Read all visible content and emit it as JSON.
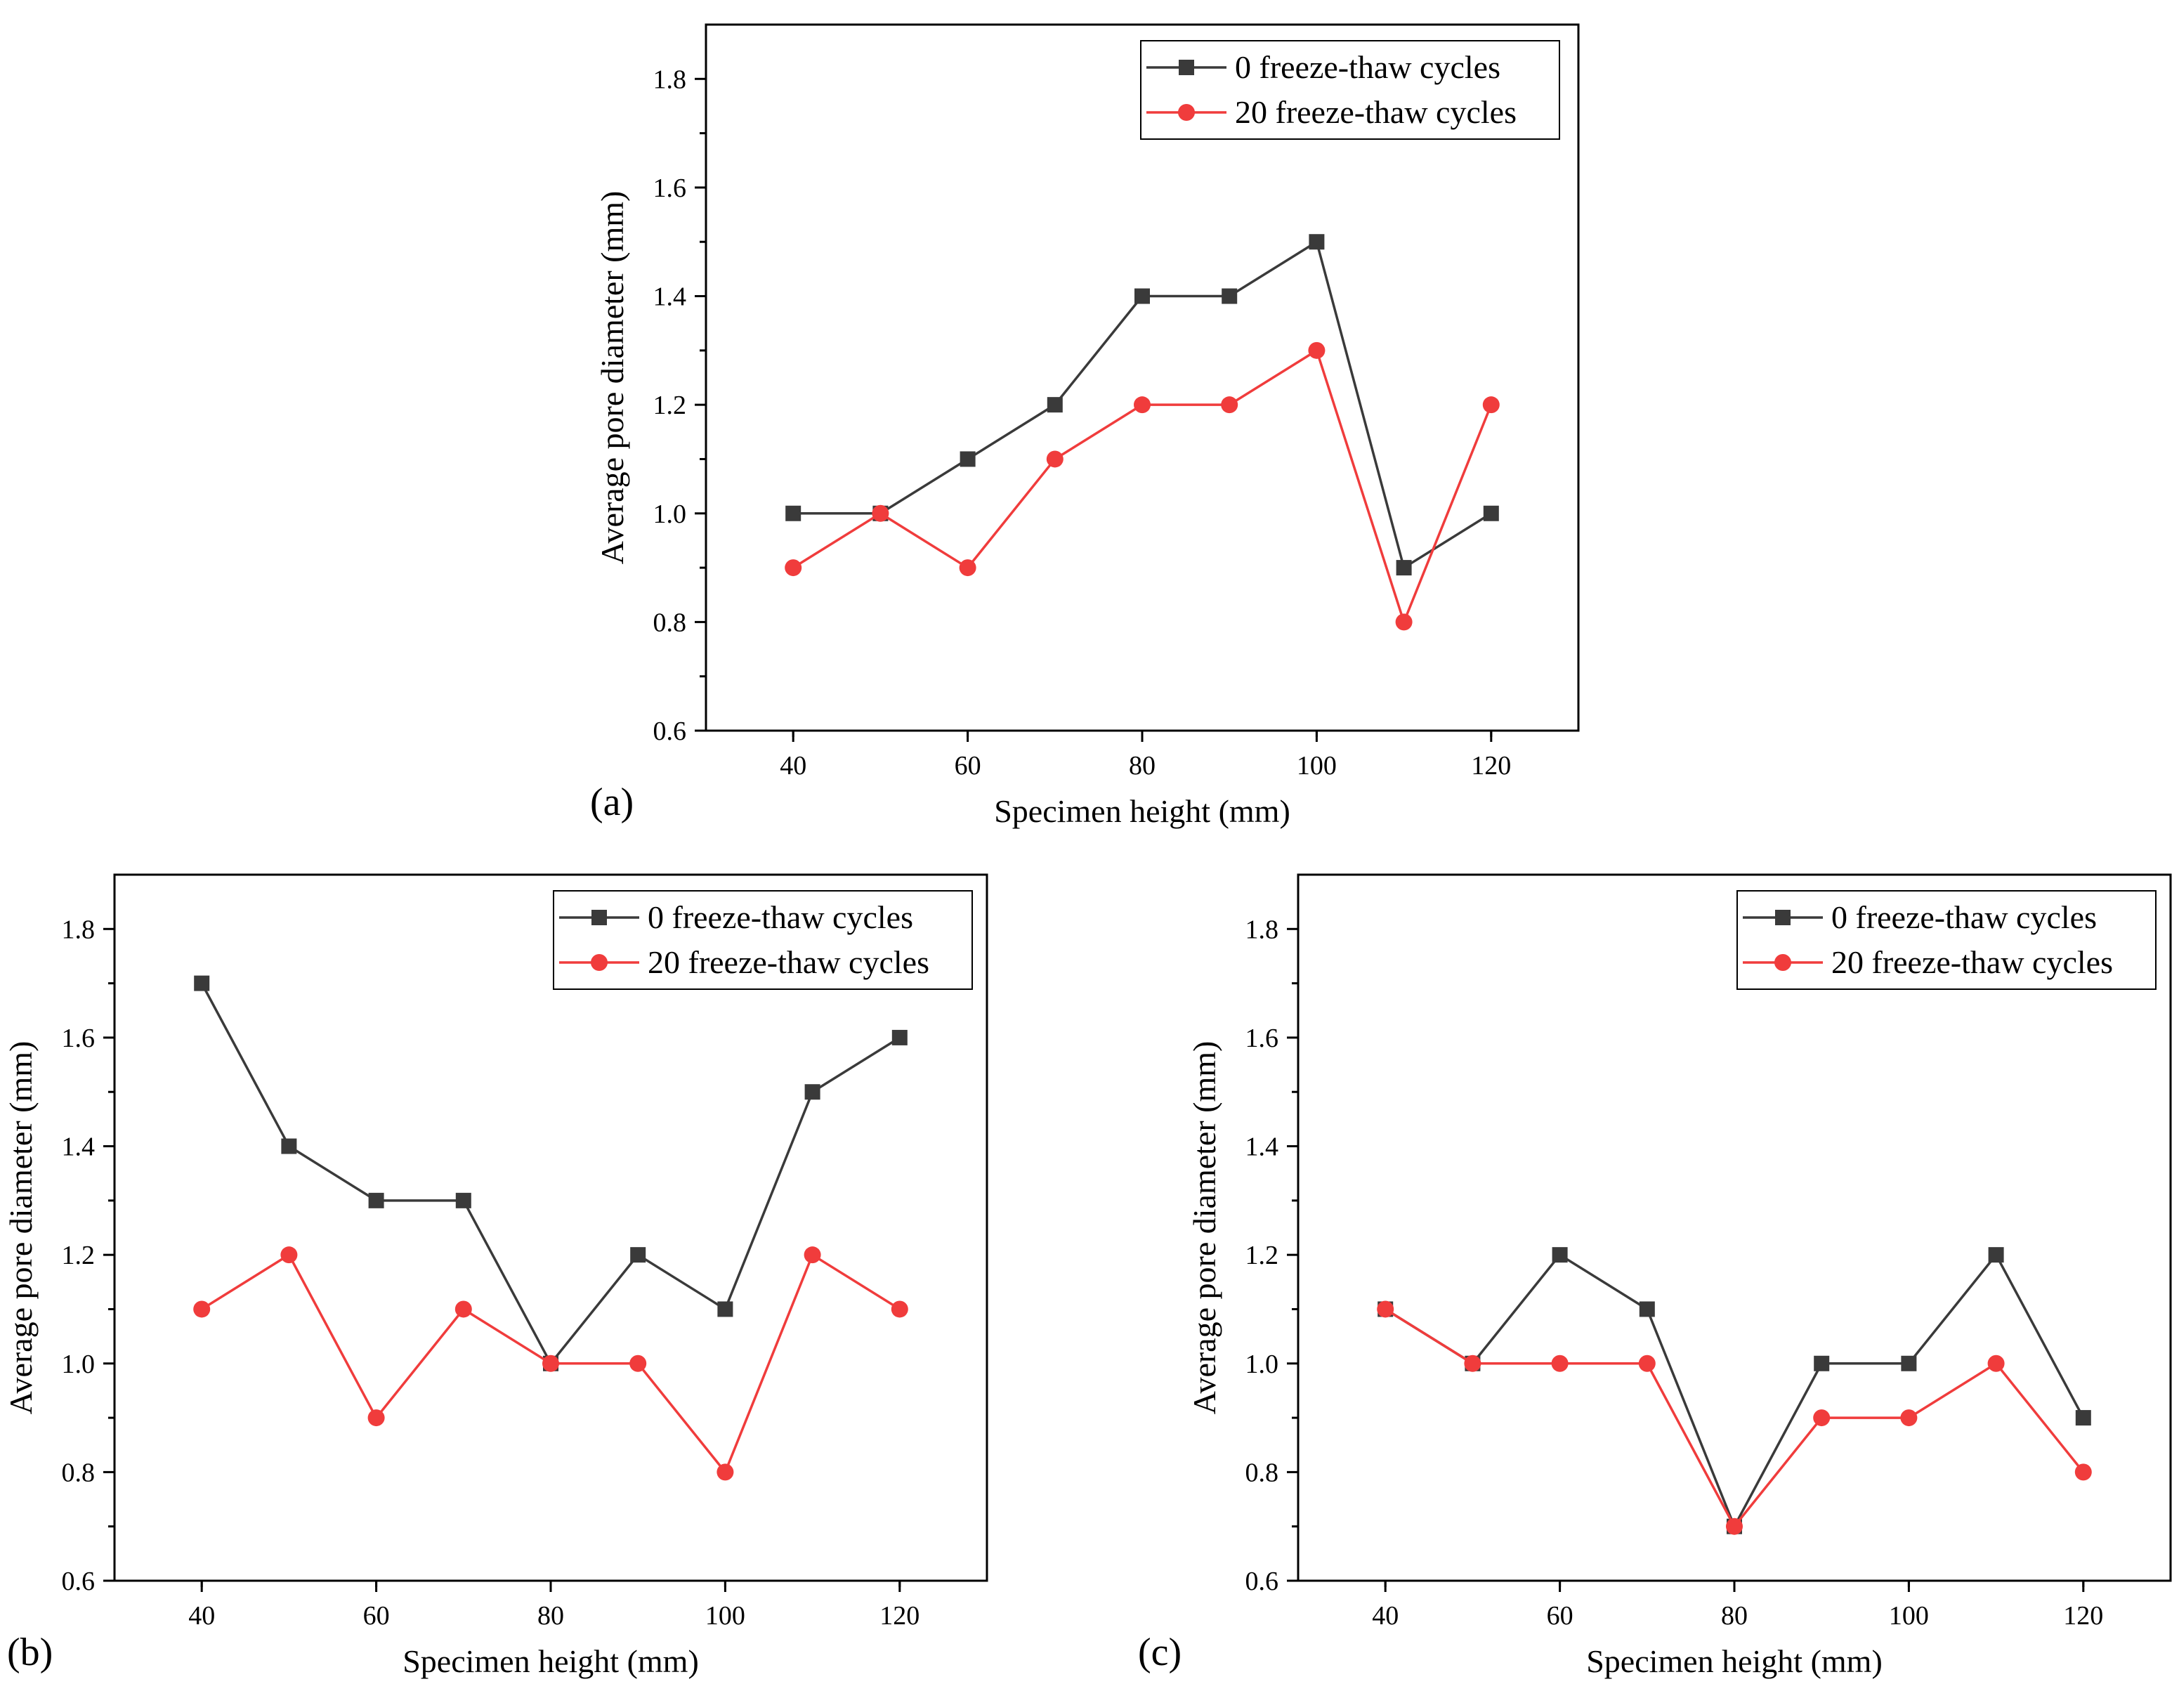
{
  "figure": {
    "panels": [
      "(a)",
      "(b)",
      "(c)"
    ]
  },
  "colors": {
    "series0": "#3a3a3a",
    "series1": "#f03c3c",
    "axis": "#000000"
  },
  "chart_data": [
    {
      "panel": "(a)",
      "type": "line",
      "xlabel": "Specimen height (mm)",
      "ylabel": "Average pore diameter (mm)",
      "xlim": [
        30,
        130
      ],
      "ylim": [
        0.6,
        1.9
      ],
      "xticks": [
        40,
        60,
        80,
        100,
        120
      ],
      "yticks": [
        0.6,
        0.8,
        1.0,
        1.2,
        1.4,
        1.6,
        1.8
      ],
      "x": [
        40,
        50,
        60,
        70,
        80,
        90,
        100,
        110,
        120
      ],
      "series": [
        {
          "name": "0 freeze-thaw cycles",
          "marker": "square",
          "values": [
            1.0,
            1.0,
            1.1,
            1.2,
            1.4,
            1.4,
            1.5,
            0.9,
            1.0
          ]
        },
        {
          "name": "20 freeze-thaw cycles",
          "marker": "circle",
          "values": [
            0.9,
            1.0,
            0.9,
            1.1,
            1.2,
            1.2,
            1.3,
            0.8,
            1.2
          ]
        }
      ],
      "legend": "top-right"
    },
    {
      "panel": "(b)",
      "type": "line",
      "xlabel": "Specimen height (mm)",
      "ylabel": "Average pore diameter (mm)",
      "xlim": [
        30,
        130
      ],
      "ylim": [
        0.6,
        1.9
      ],
      "xticks": [
        40,
        60,
        80,
        100,
        120
      ],
      "yticks": [
        0.6,
        0.8,
        1.0,
        1.2,
        1.4,
        1.6,
        1.8
      ],
      "x": [
        40,
        50,
        60,
        70,
        80,
        90,
        100,
        110,
        120
      ],
      "series": [
        {
          "name": "0 freeze-thaw cycles",
          "marker": "square",
          "values": [
            1.7,
            1.4,
            1.3,
            1.3,
            1.0,
            1.2,
            1.1,
            1.5,
            1.6
          ]
        },
        {
          "name": "20 freeze-thaw cycles",
          "marker": "circle",
          "values": [
            1.1,
            1.2,
            0.9,
            1.1,
            1.0,
            1.0,
            0.8,
            1.2,
            1.1
          ]
        }
      ],
      "legend": "top-right"
    },
    {
      "panel": "(c)",
      "type": "line",
      "xlabel": "Specimen height (mm)",
      "ylabel": "Average pore diameter (mm)",
      "xlim": [
        30,
        130
      ],
      "ylim": [
        0.6,
        1.9
      ],
      "xticks": [
        40,
        60,
        80,
        100,
        120
      ],
      "yticks": [
        0.6,
        0.8,
        1.0,
        1.2,
        1.4,
        1.6,
        1.8
      ],
      "x": [
        40,
        50,
        60,
        70,
        80,
        90,
        100,
        110,
        120
      ],
      "series": [
        {
          "name": "0 freeze-thaw cycles",
          "marker": "square",
          "values": [
            1.1,
            1.0,
            1.2,
            1.1,
            0.7,
            1.0,
            1.0,
            1.2,
            0.9
          ]
        },
        {
          "name": "20 freeze-thaw cycles",
          "marker": "circle",
          "values": [
            1.1,
            1.0,
            1.0,
            1.0,
            0.7,
            0.9,
            0.9,
            1.0,
            0.8
          ]
        }
      ],
      "legend": "top-right"
    }
  ]
}
